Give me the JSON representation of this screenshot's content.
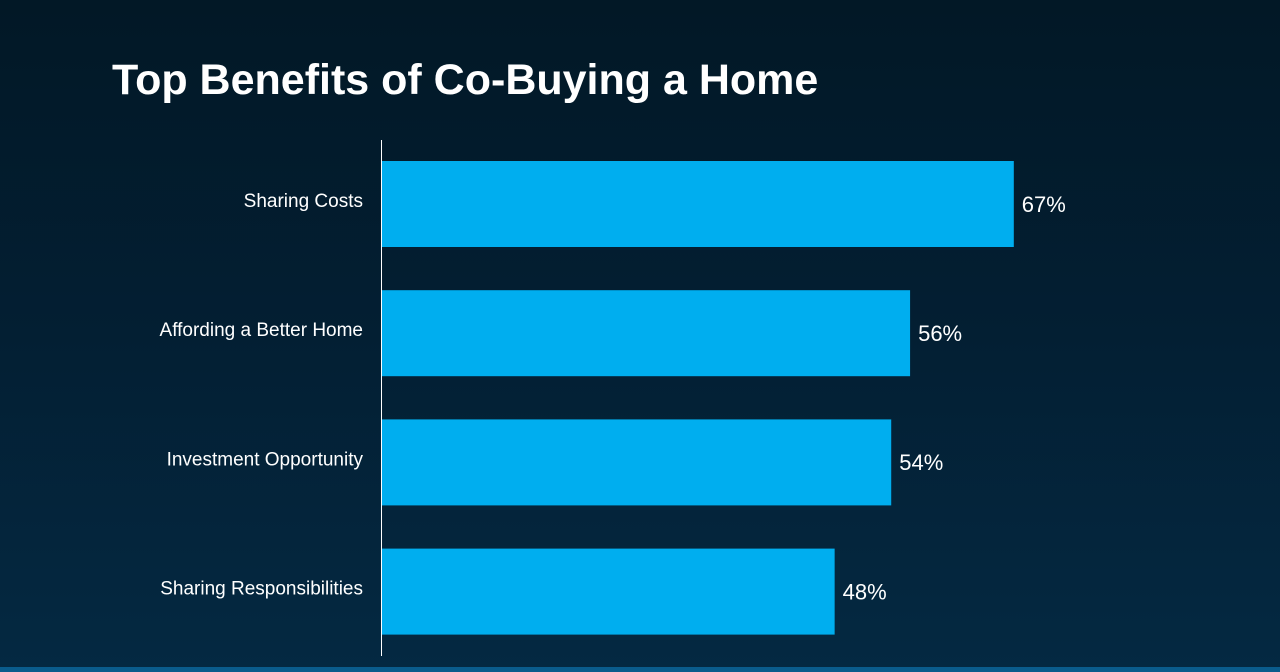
{
  "title": "Top Benefits of Co-Buying a Home",
  "colors": {
    "bar": "#00AEEF",
    "text": "#FFFFFF",
    "axis": "#FFFFFF",
    "bottom_strip": "#0A5C8C"
  },
  "chart_data": {
    "type": "bar",
    "orientation": "horizontal",
    "title": "Top Benefits of Co-Buying a Home",
    "categories": [
      "Sharing Costs",
      "Affording a Better Home",
      "Investment Opportunity",
      "Sharing Responsibilities"
    ],
    "values": [
      67,
      56,
      54,
      48
    ],
    "value_labels": [
      "67%",
      "56%",
      "54%",
      "48%"
    ],
    "unit": "%",
    "xlabel": "",
    "ylabel": "",
    "xlim": [
      0,
      100
    ],
    "grid": false,
    "legend": "none"
  }
}
